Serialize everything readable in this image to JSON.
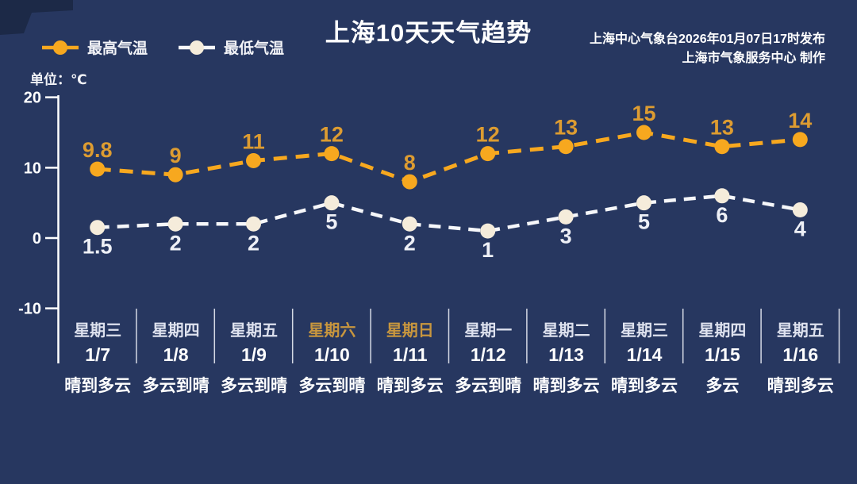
{
  "title": "上海10天天气趋势",
  "source": {
    "line1": "上海中心气象台2026年01月07日17时发布",
    "line2": "上海市气象服务中心  制作"
  },
  "unit_label": "单位：℃",
  "legend": [
    {
      "label": "最高气温"
    },
    {
      "label": "最低气温"
    }
  ],
  "colors": {
    "background": "#273760",
    "max_line": "#f7a81f",
    "max_dot": "#f7a81f",
    "max_label": "#dd9c31",
    "min_line": "#f6f7fa",
    "min_dot": "#f5ecdb",
    "min_label": "#eef0f6",
    "axis": "#ffffff",
    "divider": "#e8ebf3",
    "weekend_text": "#c8963e",
    "corner_artifact": "#1c2947"
  },
  "chart_data": {
    "type": "line",
    "title": "上海10天天气趋势",
    "ylabel": "单位：℃",
    "ylim": [
      -10,
      20
    ],
    "y_ticks": [
      20,
      10,
      0,
      -10
    ],
    "grid": false,
    "legend_position": "top-left",
    "line_style": "dashed",
    "categories": [
      "1/7",
      "1/8",
      "1/9",
      "1/10",
      "1/11",
      "1/12",
      "1/13",
      "1/14",
      "1/15",
      "1/16"
    ],
    "series": [
      {
        "name": "最高气温",
        "values": [
          9.8,
          9,
          11,
          12,
          8,
          12,
          13,
          15,
          13,
          14
        ]
      },
      {
        "name": "最低气温",
        "values": [
          1.5,
          2,
          2,
          5,
          2,
          1,
          3,
          5,
          6,
          4
        ]
      }
    ],
    "days": [
      {
        "name": "星期三",
        "date": "1/7",
        "weather": "晴到多云",
        "weekend": false
      },
      {
        "name": "星期四",
        "date": "1/8",
        "weather": "多云到晴",
        "weekend": false
      },
      {
        "name": "星期五",
        "date": "1/9",
        "weather": "多云到晴",
        "weekend": false
      },
      {
        "name": "星期六",
        "date": "1/10",
        "weather": "多云到晴",
        "weekend": true
      },
      {
        "name": "星期日",
        "date": "1/11",
        "weather": "晴到多云",
        "weekend": true
      },
      {
        "name": "星期一",
        "date": "1/12",
        "weather": "多云到晴",
        "weekend": false
      },
      {
        "name": "星期二",
        "date": "1/13",
        "weather": "晴到多云",
        "weekend": false
      },
      {
        "name": "星期三",
        "date": "1/14",
        "weather": "晴到多云",
        "weekend": false
      },
      {
        "name": "星期四",
        "date": "1/15",
        "weather": "多云",
        "weekend": false
      },
      {
        "name": "星期五",
        "date": "1/16",
        "weather": "晴到多云",
        "weekend": false
      }
    ]
  }
}
